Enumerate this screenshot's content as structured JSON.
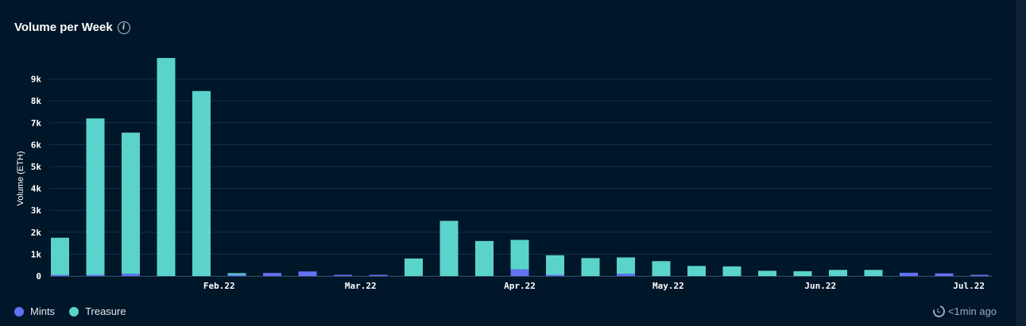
{
  "header": {
    "title": "Volume per Week"
  },
  "colors": {
    "mints": "#6272f5",
    "treasure": "#5ad4cb",
    "grid": "#123347",
    "panel": "#001629"
  },
  "legend": {
    "mints": "Mints",
    "treasure": "Treasure"
  },
  "status": {
    "updated": "<1min ago"
  },
  "chart_data": {
    "type": "bar",
    "stacked": true,
    "ylabel": "Volume (ETH)",
    "ylim": [
      0,
      10000
    ],
    "yticks": [
      0,
      1000,
      2000,
      3000,
      4000,
      5000,
      6000,
      7000,
      8000,
      9000
    ],
    "ytick_labels": [
      "0",
      "1k",
      "2k",
      "3k",
      "4k",
      "5k",
      "6k",
      "7k",
      "8k",
      "9k"
    ],
    "xtick_labels": [
      {
        "label": "Feb.22",
        "index": 4.5
      },
      {
        "label": "Mar.22",
        "index": 8.5
      },
      {
        "label": "Apr.22",
        "index": 13
      },
      {
        "label": "May.22",
        "index": 17.2
      },
      {
        "label": "Jun.22",
        "index": 21.5
      },
      {
        "label": "Jul.22",
        "index": 25.7
      }
    ],
    "series": [
      {
        "name": "Mints",
        "values": [
          20,
          50,
          100,
          0,
          0,
          20,
          140,
          210,
          10,
          15,
          0,
          0,
          0,
          300,
          50,
          0,
          100,
          0,
          0,
          0,
          0,
          0,
          0,
          0,
          150,
          120,
          30
        ]
      },
      {
        "name": "Treasure",
        "values": [
          1730,
          7150,
          6450,
          9960,
          8450,
          110,
          0,
          0,
          0,
          0,
          800,
          2520,
          1600,
          1350,
          900,
          820,
          750,
          680,
          460,
          440,
          240,
          220,
          280,
          280,
          0,
          0,
          0
        ]
      }
    ],
    "legend_position": "bottom-left",
    "grid": true
  }
}
